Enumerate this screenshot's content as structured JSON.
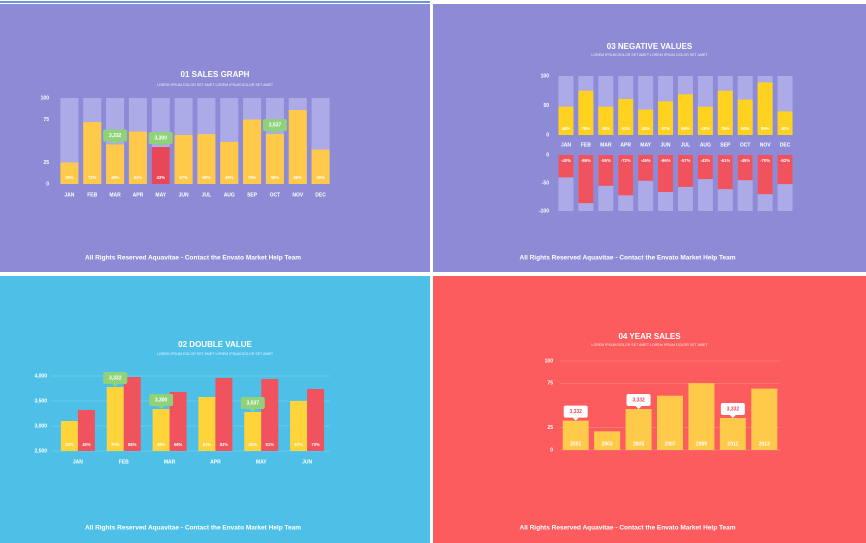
{
  "chart_data": [
    {
      "type": "bar",
      "title": "01 SALES GRAPH",
      "subtitle": "LOREM IPSUM DOLOR SET AMET LOREM IPSUM DOLOR SET AMET",
      "categories": [
        "JAN",
        "FEB",
        "MAR",
        "APR",
        "MAY",
        "JUN",
        "JUL",
        "AUG",
        "SEP",
        "OCT",
        "NOV",
        "DEC"
      ],
      "values": [
        25,
        72,
        46,
        61,
        43,
        57,
        58,
        49,
        75,
        58,
        86,
        40
      ],
      "value_labels": [
        "25%",
        "72%",
        "46%",
        "61%",
        "43%",
        "57%",
        "58%",
        "49%",
        "75%",
        "58%",
        "86%",
        "40%"
      ],
      "color": "#ffc94a",
      "track_color": "#adaae8",
      "highlight": {
        "category": "MAY",
        "color": "#e8475a"
      },
      "background": "#8e8bd6",
      "ylim": [
        0,
        100
      ],
      "yticks": [
        0,
        25,
        75,
        100
      ],
      "grid": false,
      "category_labels": "below",
      "annotations": [
        {
          "category": "MAR",
          "text": "3,332"
        },
        {
          "category": "MAY",
          "text": "3,300"
        },
        {
          "category": "OCT",
          "text": "3,537"
        }
      ],
      "annotation_color": "#8fd27a",
      "annotation_text_color": "#ffffff",
      "footer": "All Rights Reserved Aquavitae - Contact the Envato Market Help Team"
    },
    {
      "type": "diverging_bar",
      "title": "03 NEGATIVE VALUES",
      "subtitle": "LOREM IPSUM DOLOR SET AMET LOREM IPSUM DOLOR SET AMET",
      "categories": [
        "JAN",
        "FEB",
        "MAR",
        "APR",
        "MAY",
        "JUN",
        "JUL",
        "AUG",
        "SEP",
        "OCT",
        "NOV",
        "DEC"
      ],
      "series": [
        {
          "color": "#ffd21f",
          "values": [
            48,
            75,
            48,
            61,
            43,
            57,
            69,
            48,
            75,
            60,
            89,
            40
          ],
          "value_labels": [
            "48%",
            "75%",
            "48%",
            "61%",
            "43%",
            "57%",
            "69%",
            "48%",
            "75%",
            "60%",
            "89%",
            "40%"
          ]
        },
        {
          "color": "#f0525e",
          "axis": "y2",
          "values": [
            -40,
            -86,
            -55,
            -72,
            -46,
            -66,
            -57,
            -43,
            -61,
            -45,
            -70,
            -52
          ],
          "value_labels": [
            "-40%",
            "-86%",
            "-55%",
            "-72%",
            "-46%",
            "-66%",
            "-57%",
            "-43%",
            "-61%",
            "-45%",
            "-70%",
            "-52%"
          ]
        }
      ],
      "track_color": "#adaae8",
      "background": "#8e8bd6",
      "ylim": [
        0,
        100
      ],
      "yticks": [
        0,
        50,
        100
      ],
      "y2lim": [
        -100,
        0
      ],
      "y2ticks": [
        -100,
        -50,
        0
      ],
      "footer": "All Rights Reserved Aquavitae - Contact the Envato Market Help Team"
    },
    {
      "type": "grouped_bar",
      "title": "02 DOUBLE VALUE",
      "subtitle": "LOREM IPSUM DOLOR SET AMET LOREM IPSUM DOLOR SET AMET",
      "categories": [
        "JAN",
        "FEB",
        "MAR",
        "APR",
        "MAY",
        "JUN"
      ],
      "series": [
        {
          "color": "#ffd43b",
          "values": [
            3100,
            3780,
            3340,
            3580,
            3280,
            3500
          ],
          "share_labels": [
            "33%",
            "75%",
            "48%",
            "61%",
            "45%",
            "57%"
          ]
        },
        {
          "color": "#f0525e",
          "values": [
            3320,
            3980,
            3680,
            3960,
            3940,
            3740
          ],
          "share_labels": [
            "45%",
            "88%",
            "66%",
            "83%",
            "81%",
            "70%"
          ]
        }
      ],
      "background": "#4ec0e8",
      "grid": true,
      "grid_color": "#7fd3f0",
      "ylim": [
        2500,
        4000
      ],
      "yticks": [
        {
          "value": 2500,
          "label": "2,500"
        },
        {
          "value": 3000,
          "label": "3,000"
        },
        {
          "value": 3500,
          "label": "3,500"
        },
        {
          "value": 4000,
          "label": "4,000"
        }
      ],
      "annotations": [
        {
          "category": "FEB",
          "text": "3,332"
        },
        {
          "category": "MAR",
          "text": "3,300"
        },
        {
          "category": "MAY",
          "text": "3,537"
        }
      ],
      "annotation_color": "#8fd27a",
      "annotation_text_color": "#ffffff",
      "footer": "All Rights Reserved Aquavitae - Contact the Envato Market Help Team"
    },
    {
      "type": "bar",
      "title": "04 YEAR SALES",
      "subtitle": "LOREM IPSUM DOLOR SET AMET LOREM IPSUM DOLOR SET AMET",
      "categories": [
        "2001",
        "2003",
        "2005",
        "2007",
        "2009",
        "2011",
        "2013"
      ],
      "values": [
        33,
        21,
        46,
        61,
        75,
        36,
        69
      ],
      "color": "#ffc94a",
      "background": "#fd5c5e",
      "grid": true,
      "grid_color": "#ff8a85",
      "category_labels": "inside",
      "ylim": [
        0,
        100
      ],
      "yticks": [
        0,
        25,
        75,
        100
      ],
      "annotations": [
        {
          "category": "2001",
          "text": "3,332"
        },
        {
          "category": "2005",
          "text": "3,332"
        },
        {
          "category": "2011",
          "text": "3,332"
        }
      ],
      "annotation_color": "#ffffff",
      "annotation_text_color": "#e8475a",
      "footer": "All Rights Reserved Aquavitae - Contact the Envato Market Help Team"
    }
  ]
}
